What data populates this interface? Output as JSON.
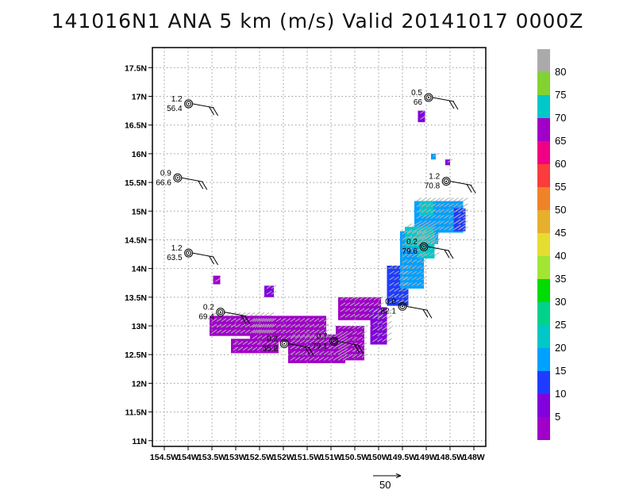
{
  "chart_data": {
    "type": "heatmap",
    "title": "141016N1 ANA 5 km (m/s) Valid 20141017  0000Z",
    "xlim": [
      -154.75,
      -147.75
    ],
    "ylim": [
      10.9,
      17.85
    ],
    "x_ticks": [
      {
        "value": -154.5,
        "label": "154.5W"
      },
      {
        "value": -154,
        "label": "154W"
      },
      {
        "value": -153.5,
        "label": "153.5W"
      },
      {
        "value": -153,
        "label": "153W"
      },
      {
        "value": -152.5,
        "label": "152.5W"
      },
      {
        "value": -152,
        "label": "152W"
      },
      {
        "value": -151.5,
        "label": "151.5W"
      },
      {
        "value": -151,
        "label": "151W"
      },
      {
        "value": -150.5,
        "label": "150.5W"
      },
      {
        "value": -150,
        "label": "150W"
      },
      {
        "value": -149.5,
        "label": "149.5W"
      },
      {
        "value": -149,
        "label": "149W"
      },
      {
        "value": -148.5,
        "label": "148.5W"
      },
      {
        "value": -148,
        "label": "148W"
      }
    ],
    "y_ticks": [
      {
        "value": 11,
        "label": "11N"
      },
      {
        "value": 11.5,
        "label": "11.5N"
      },
      {
        "value": 12,
        "label": "12N"
      },
      {
        "value": 12.5,
        "label": "12.5N"
      },
      {
        "value": 13,
        "label": "13N"
      },
      {
        "value": 13.5,
        "label": "13.5N"
      },
      {
        "value": 14,
        "label": "14N"
      },
      {
        "value": 14.5,
        "label": "14.5N"
      },
      {
        "value": 15,
        "label": "15N"
      },
      {
        "value": 15.5,
        "label": "15.5N"
      },
      {
        "value": 16,
        "label": "16N"
      },
      {
        "value": 16.5,
        "label": "16.5N"
      },
      {
        "value": 17,
        "label": "17N"
      },
      {
        "value": 17.5,
        "label": "17.5N"
      }
    ],
    "grid": true,
    "colorbar": {
      "levels": [
        5,
        10,
        15,
        20,
        25,
        30,
        35,
        40,
        45,
        50,
        55,
        60,
        65,
        70,
        75,
        80
      ],
      "colors": [
        "#a000c8",
        "#8200dc",
        "#1e3cff",
        "#00a0ff",
        "#00c8c8",
        "#00d28c",
        "#00dc00",
        "#a0e632",
        "#e6dc32",
        "#e6af2d",
        "#f08228",
        "#fa3c3c",
        "#f00082",
        "#a000c8",
        "#00c8c8",
        "#82d232",
        "#aaaaaa"
      ]
    },
    "speed_field": [
      {
        "lon": -153.4,
        "lat": 13.8,
        "w": 0.15,
        "h": 0.15,
        "value": 4
      },
      {
        "lon": -152.9,
        "lat": 13.0,
        "w": 1.3,
        "h": 0.35,
        "value": 4
      },
      {
        "lon": -152.6,
        "lat": 12.65,
        "w": 1.0,
        "h": 0.25,
        "value": 4
      },
      {
        "lon": -152.3,
        "lat": 13.6,
        "w": 0.2,
        "h": 0.2,
        "value": 8
      },
      {
        "lon": -151.9,
        "lat": 12.95,
        "w": 1.6,
        "h": 0.45,
        "value": 4
      },
      {
        "lon": -151.3,
        "lat": 12.6,
        "w": 1.2,
        "h": 0.5,
        "value": 4
      },
      {
        "lon": -150.6,
        "lat": 12.7,
        "w": 0.6,
        "h": 0.6,
        "value": 4
      },
      {
        "lon": -150.4,
        "lat": 13.3,
        "w": 0.9,
        "h": 0.4,
        "value": 4
      },
      {
        "lon": -150.0,
        "lat": 13.0,
        "w": 0.35,
        "h": 0.65,
        "value": 9
      },
      {
        "lon": -149.6,
        "lat": 13.7,
        "w": 0.45,
        "h": 0.7,
        "value": 12
      },
      {
        "lon": -149.3,
        "lat": 14.15,
        "w": 0.5,
        "h": 1.0,
        "value": 16
      },
      {
        "lon": -149.0,
        "lat": 14.8,
        "w": 0.5,
        "h": 0.75,
        "value": 18
      },
      {
        "lon": -149.0,
        "lat": 14.4,
        "w": 0.35,
        "h": 0.45,
        "value": 22
      },
      {
        "lon": -148.5,
        "lat": 14.9,
        "w": 0.55,
        "h": 0.55,
        "value": 16
      },
      {
        "lon": -148.3,
        "lat": 14.85,
        "w": 0.25,
        "h": 0.4,
        "value": 12
      },
      {
        "lon": -149.1,
        "lat": 16.65,
        "w": 0.15,
        "h": 0.2,
        "value": 9
      },
      {
        "lon": -148.85,
        "lat": 15.95,
        "w": 0.1,
        "h": 0.1,
        "value": 15
      },
      {
        "lon": -148.55,
        "lat": 15.85,
        "w": 0.1,
        "h": 0.1,
        "value": 9
      },
      {
        "lon": -149.15,
        "lat": 14.55,
        "w": 0.6,
        "h": 0.35,
        "value": 22
      },
      {
        "lon": -149.0,
        "lat": 15.05,
        "w": 0.3,
        "h": 0.25,
        "value": 21
      }
    ],
    "stations": [
      {
        "lon": -153.99,
        "lat": 16.87,
        "value_top": "1.2",
        "value_bottom": "56.4"
      },
      {
        "lon": -154.22,
        "lat": 15.58,
        "value_top": "0.9",
        "value_bottom": "66.6"
      },
      {
        "lon": -153.99,
        "lat": 14.27,
        "value_top": "1.2",
        "value_bottom": "63.5"
      },
      {
        "lon": -153.32,
        "lat": 13.24,
        "value_top": "0.2",
        "value_bottom": "69.4"
      },
      {
        "lon": -151.98,
        "lat": 12.69,
        "value_top": "0.2",
        "value_bottom": "35.8"
      },
      {
        "lon": -150.94,
        "lat": 12.73,
        "value_top": "0.7",
        "value_bottom": "79.1"
      },
      {
        "lon": -149.5,
        "lat": 13.34,
        "value_top": "0.0",
        "value_bottom": "82.1"
      },
      {
        "lon": -149.05,
        "lat": 14.38,
        "value_top": "0.2",
        "value_bottom": "79.6"
      },
      {
        "lon": -148.58,
        "lat": 15.52,
        "value_top": "1.2",
        "value_bottom": "70.8"
      },
      {
        "lon": -148.95,
        "lat": 16.98,
        "value_top": "0.5",
        "value_bottom": "66"
      }
    ],
    "reference_vector": {
      "label": "50"
    }
  }
}
